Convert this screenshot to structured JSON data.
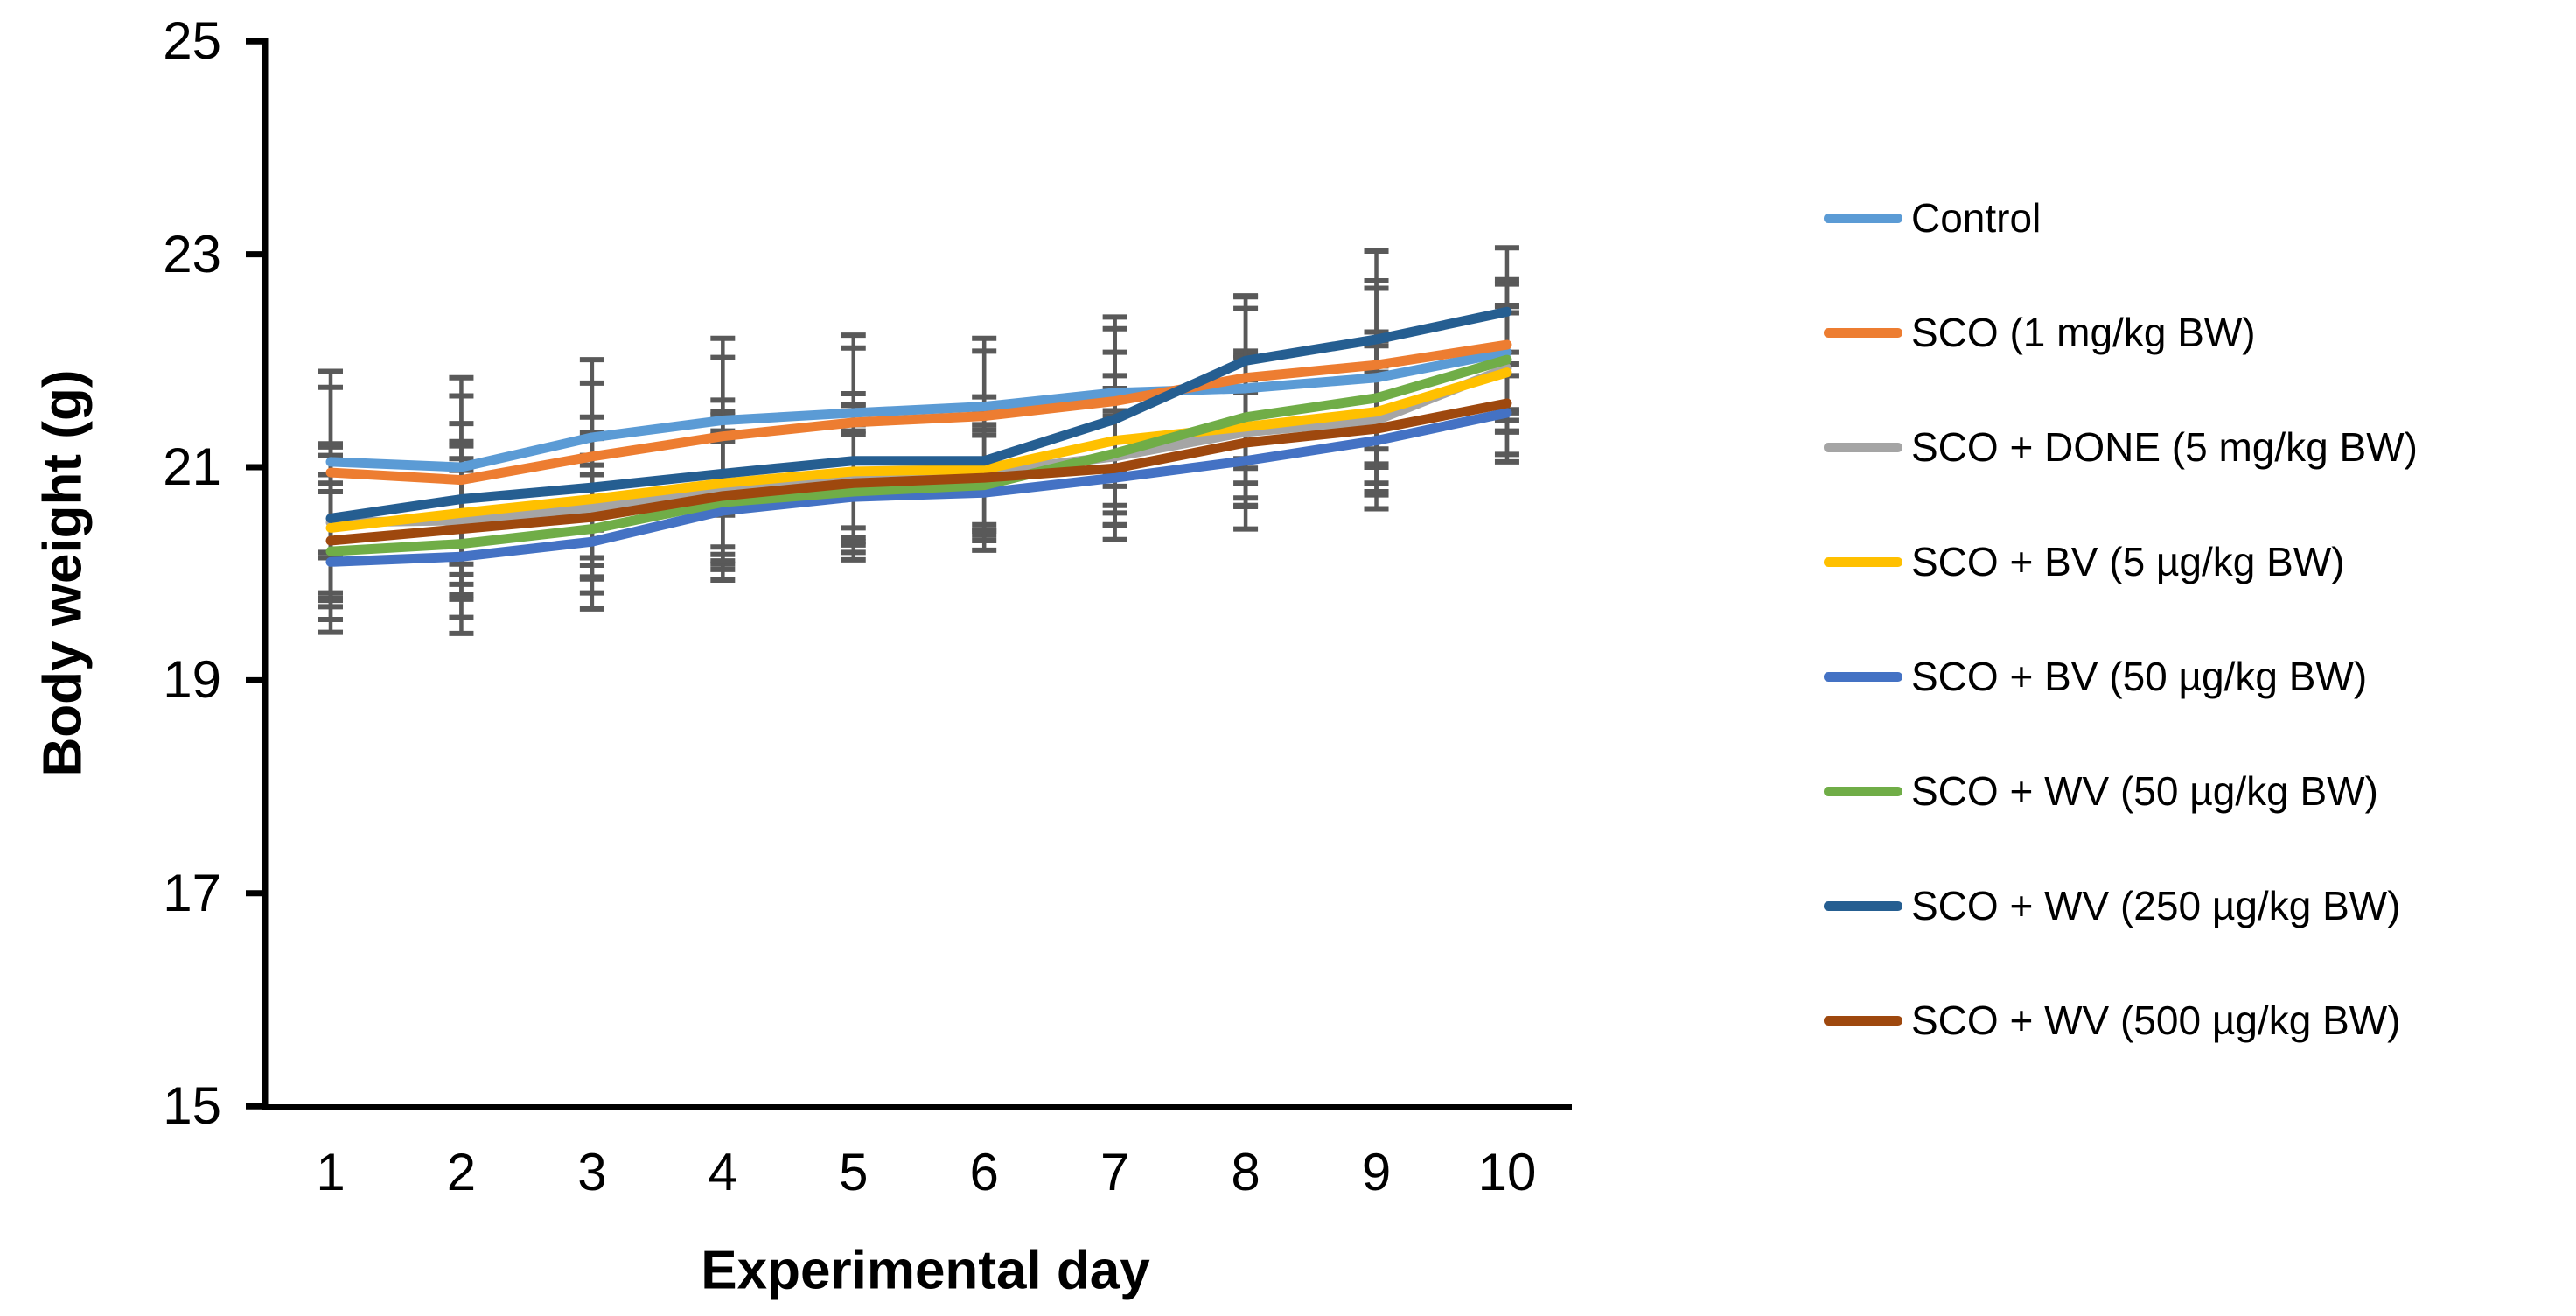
{
  "figure": {
    "background": "#FFFFFF",
    "axis_color": "#000000",
    "error_bar_color": "#595959"
  },
  "chart_data": {
    "type": "line",
    "title": "",
    "xlabel": "Experimental day",
    "ylabel": "Body weight (g)",
    "x": [
      1,
      2,
      3,
      4,
      5,
      6,
      7,
      8,
      9,
      10
    ],
    "ylim": [
      15,
      25
    ],
    "yticks": [
      15,
      17,
      19,
      21,
      23,
      25
    ],
    "grid": false,
    "legend_position": "right",
    "error_bars": "vertical error bars with caps on every point, gray #595959",
    "series": [
      {
        "name": "Control",
        "color": "#5B9BD5",
        "values": [
          21.05,
          21.0,
          21.28,
          21.44,
          21.51,
          21.57,
          21.7,
          21.74,
          21.84,
          22.08
        ],
        "errors": [
          0.85,
          0.84,
          0.73,
          0.77,
          0.73,
          0.64,
          0.71,
          0.75,
          0.84,
          0.64
        ]
      },
      {
        "name": "SCO (1 mg/kg BW)",
        "color": "#ED7D31",
        "values": [
          20.95,
          20.88,
          21.1,
          21.29,
          21.42,
          21.48,
          21.62,
          21.84,
          21.96,
          22.15
        ],
        "errors": [
          0.8,
          0.79,
          0.69,
          0.74,
          0.7,
          0.61,
          0.68,
          0.76,
          0.79,
          0.61
        ]
      },
      {
        "name": "SCO + DONE (5 mg/kg BW)",
        "color": "#A5A5A5",
        "values": [
          20.48,
          20.5,
          20.62,
          20.79,
          20.93,
          20.95,
          21.1,
          21.33,
          21.44,
          21.93
        ],
        "errors": [
          0.71,
          0.7,
          0.65,
          0.7,
          0.66,
          0.59,
          0.64,
          0.7,
          0.7,
          0.59
        ]
      },
      {
        "name": "SCO + BV (5 µg/kg BW)",
        "color": "#FFC000",
        "values": [
          20.43,
          20.57,
          20.7,
          20.85,
          20.96,
          20.98,
          21.25,
          21.38,
          21.52,
          21.89
        ],
        "errors": [
          0.68,
          0.67,
          0.62,
          0.67,
          0.62,
          0.57,
          0.61,
          0.67,
          0.67,
          0.56
        ]
      },
      {
        "name": "SCO + BV (50 µg/kg BW)",
        "color": "#4472C4",
        "values": [
          20.11,
          20.16,
          20.3,
          20.59,
          20.72,
          20.76,
          20.9,
          21.06,
          21.25,
          21.51
        ],
        "errors": [
          0.66,
          0.72,
          0.63,
          0.65,
          0.59,
          0.54,
          0.58,
          0.64,
          0.64,
          0.46
        ]
      },
      {
        "name": "SCO + WV (50 µg/kg BW)",
        "color": "#70AD47",
        "values": [
          20.21,
          20.28,
          20.42,
          20.67,
          20.77,
          20.83,
          21.13,
          21.47,
          21.65,
          22.01
        ],
        "errors": [
          0.64,
          0.69,
          0.6,
          0.63,
          0.57,
          0.52,
          0.56,
          0.62,
          0.62,
          0.5
        ]
      },
      {
        "name": "SCO + WV (250 µg/kg BW)",
        "color": "#255E91",
        "values": [
          20.52,
          20.7,
          20.81,
          20.94,
          21.06,
          21.06,
          21.45,
          22.0,
          22.2,
          22.46
        ],
        "errors": [
          0.7,
          0.71,
          0.66,
          0.69,
          0.63,
          0.6,
          0.63,
          0.61,
          0.83,
          0.6
        ]
      },
      {
        "name": "SCO + WV (500 µg/kg BW)",
        "color": "#9E480E",
        "values": [
          20.31,
          20.42,
          20.53,
          20.73,
          20.85,
          20.9,
          20.99,
          21.23,
          21.36,
          21.6
        ],
        "errors": [
          0.62,
          0.66,
          0.58,
          0.61,
          0.55,
          0.5,
          0.54,
          0.59,
          0.59,
          0.48
        ]
      }
    ]
  }
}
